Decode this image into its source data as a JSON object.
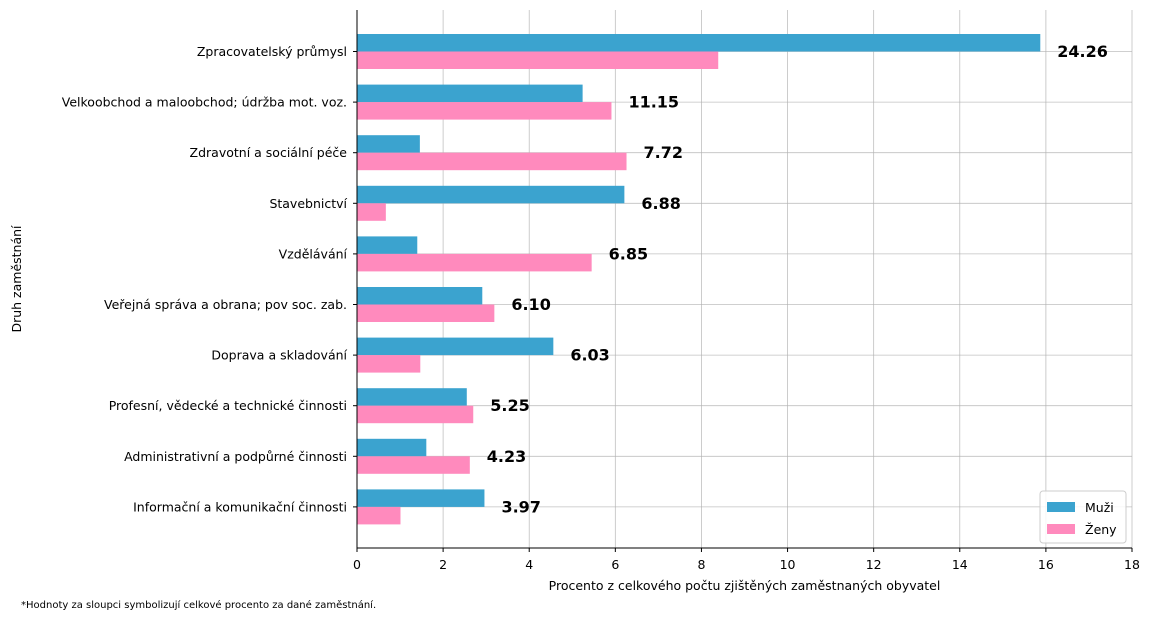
{
  "chart_data": {
    "type": "bar",
    "orientation": "horizontal",
    "categories": [
      "Zpracovatelský průmysl",
      "Velkoobchod a maloobchod; údržba mot. voz.",
      "Zdravotní a sociální péče",
      "Stavebnictví",
      "Vzdělávání",
      "Veřejná správa a obrana; pov soc. zab.",
      "Doprava a skladování",
      "Profesní, vědecké a technické činnosti",
      "Administrativní a podpůrné činnosti",
      "Informační a komunikační činnosti"
    ],
    "series": [
      {
        "name": "Muži",
        "color": "#3ba3cf",
        "values": [
          15.87,
          5.24,
          1.46,
          6.21,
          1.4,
          2.91,
          4.56,
          2.55,
          1.61,
          2.96
        ]
      },
      {
        "name": "Ženy",
        "color": "#ff8abd",
        "values": [
          8.39,
          5.91,
          6.26,
          0.67,
          5.45,
          3.19,
          1.47,
          2.7,
          2.62,
          1.01
        ]
      }
    ],
    "totals": [
      24.26,
      11.15,
      7.72,
      6.88,
      6.85,
      6.1,
      6.03,
      5.25,
      4.23,
      3.97
    ],
    "total_labels": [
      "24.26",
      "11.15",
      "7.72",
      "6.88",
      "6.85",
      "6.10",
      "6.03",
      "5.25",
      "4.23",
      "3.97"
    ],
    "xlabel": "Procento z celkového počtu zjištěných zaměstnaných obyvatel",
    "ylabel": "Druh zaměstnání",
    "xlim": [
      0,
      18
    ],
    "xticks": [
      0,
      2,
      4,
      6,
      8,
      10,
      12,
      14,
      16,
      18
    ],
    "grid": true,
    "legend_position": "bottom-right"
  },
  "footnote": "*Hodnoty za sloupci symbolizují celkové procento za dané zaměstnání."
}
